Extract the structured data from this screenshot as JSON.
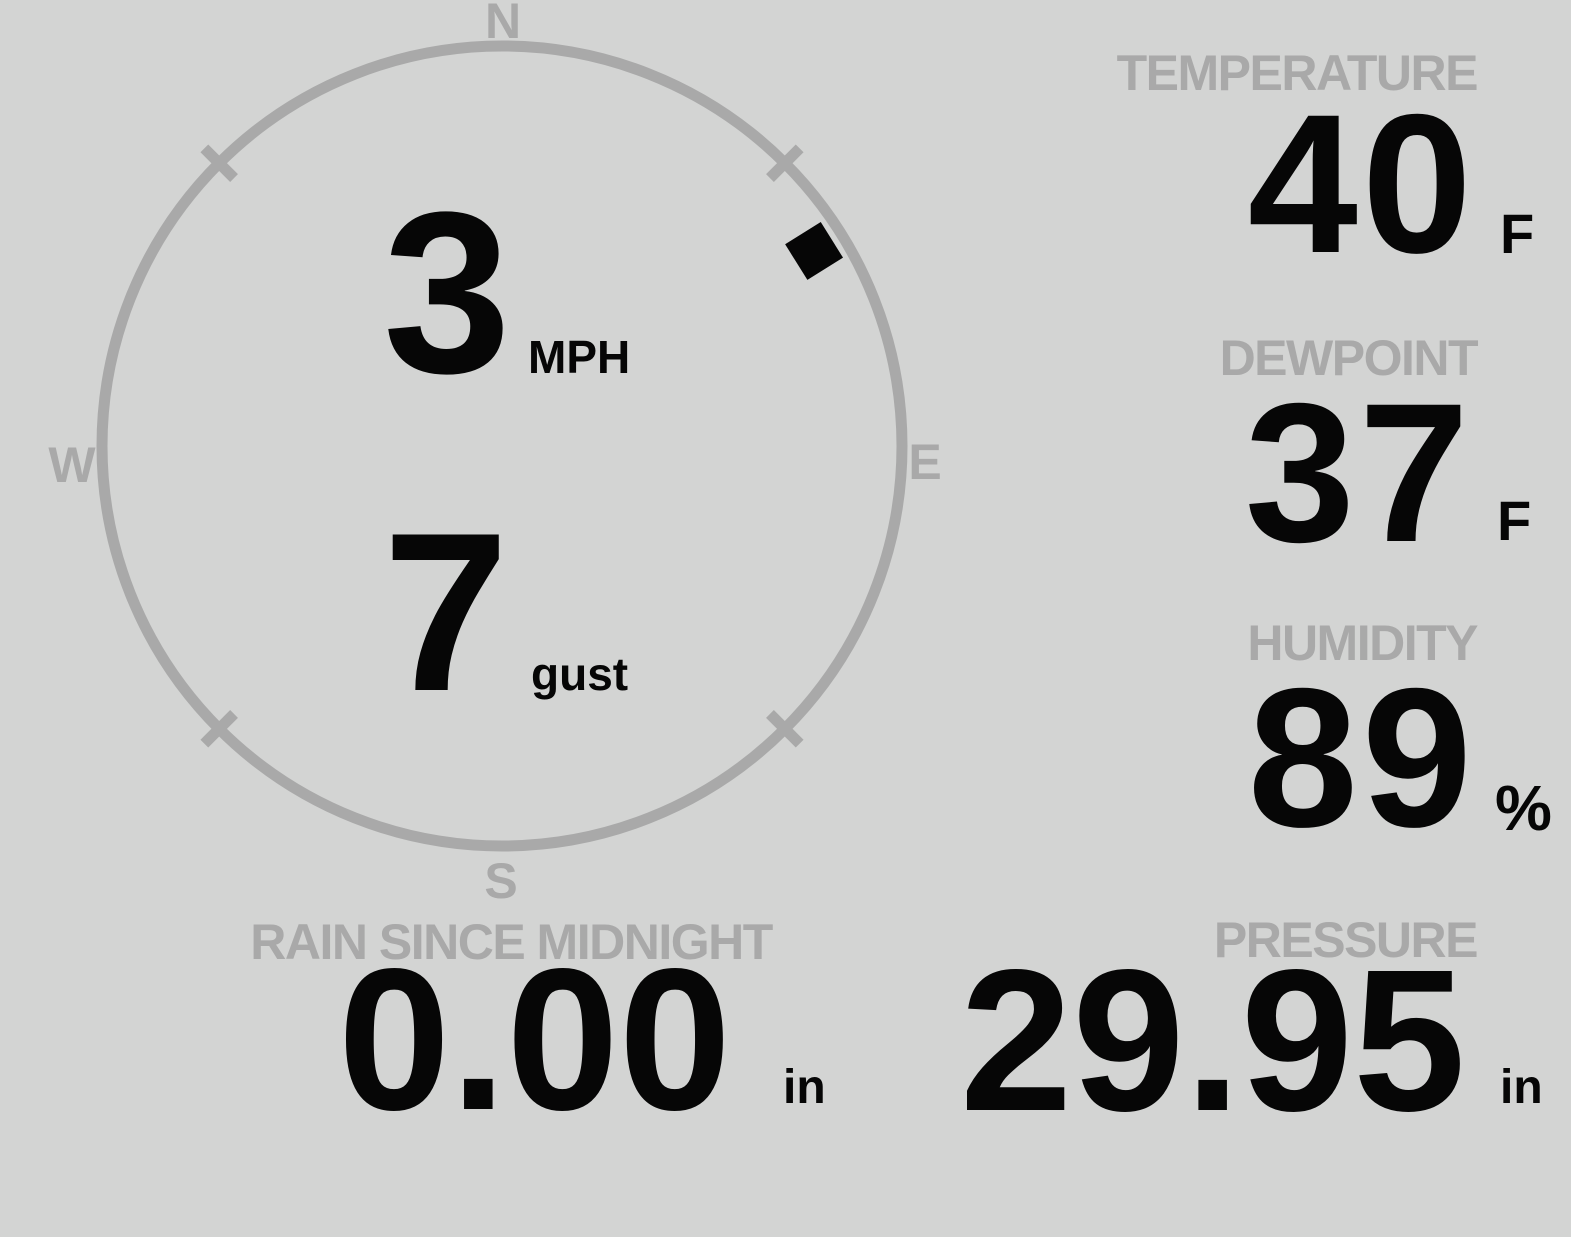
{
  "colors": {
    "background": "#d3d4d3",
    "muted_gray": "#a9a9a9",
    "value_black": "#060606"
  },
  "compass": {
    "cardinal": {
      "north": "N",
      "east": "E",
      "south": "S",
      "west": "W"
    },
    "wind_speed": {
      "value": "3",
      "unit": "MPH"
    },
    "wind_gust": {
      "value": "7",
      "unit": "gust"
    },
    "wind_direction_deg": 58
  },
  "metrics": {
    "temperature": {
      "label": "TEMPERATURE",
      "value": "40",
      "unit": "F"
    },
    "dewpoint": {
      "label": "DEWPOINT",
      "value": "37",
      "unit": "F"
    },
    "humidity": {
      "label": "HUMIDITY",
      "value": "89",
      "unit": "%"
    },
    "rain": {
      "label": "RAIN SINCE MIDNIGHT",
      "value": "0.00",
      "unit": "in"
    },
    "pressure": {
      "label": "PRESSURE",
      "value": "29.95",
      "unit": "in"
    }
  }
}
